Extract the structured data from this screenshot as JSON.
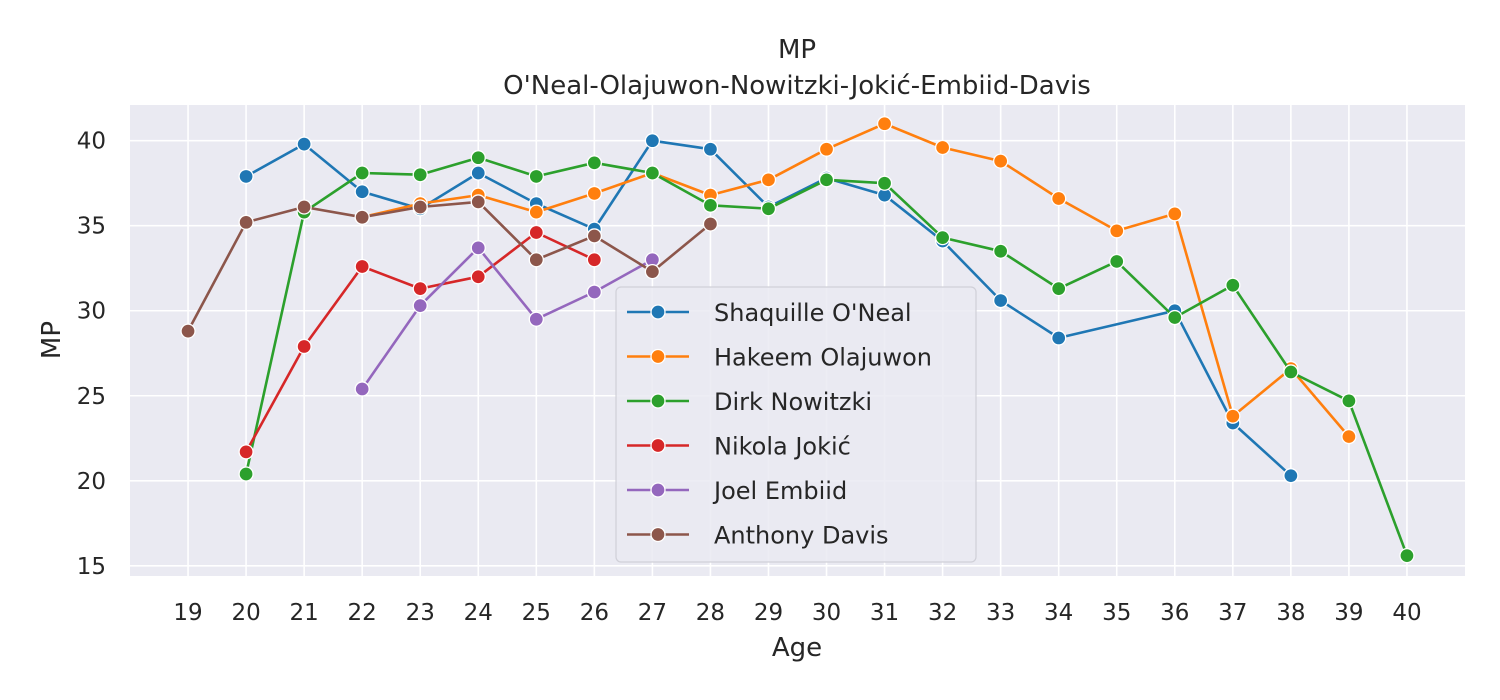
{
  "chart_data": {
    "type": "line",
    "title": "MP",
    "subtitle": "O'Neal-Olajuwon-Nowitzki-Jokić-Embiid-Davis",
    "xlabel": "Age",
    "ylabel": "MP",
    "x_ticks": [
      19,
      20,
      21,
      22,
      23,
      24,
      25,
      26,
      27,
      28,
      29,
      30,
      31,
      32,
      33,
      34,
      35,
      36,
      37,
      38,
      39,
      40
    ],
    "y_ticks": [
      15,
      20,
      25,
      30,
      35,
      40
    ],
    "xlim": [
      18,
      41
    ],
    "ylim": [
      14.4,
      42.1
    ],
    "grid": true,
    "legend_position": "center",
    "background_color": "#eaeaf2",
    "grid_color": "#ffffff",
    "series": [
      {
        "name": "Shaquille O'Neal",
        "color": "#1f77b4",
        "points": [
          [
            20,
            37.9
          ],
          [
            21,
            39.8
          ],
          [
            22,
            37.0
          ],
          [
            23,
            36.0
          ],
          [
            24,
            38.1
          ],
          [
            25,
            36.3
          ],
          [
            26,
            34.8
          ],
          [
            27,
            40.0
          ],
          [
            28,
            39.5
          ],
          [
            29,
            36.1
          ],
          [
            30,
            37.8
          ],
          [
            31,
            36.8
          ],
          [
            32,
            34.1
          ],
          [
            33,
            30.6
          ],
          [
            34,
            28.4
          ],
          [
            36,
            30.0
          ],
          [
            37,
            23.4
          ],
          [
            38,
            20.3
          ]
        ]
      },
      {
        "name": "Hakeem Olajuwon",
        "color": "#ff7f0e",
        "points": [
          [
            22,
            35.5
          ],
          [
            23,
            36.3
          ],
          [
            24,
            36.8
          ],
          [
            25,
            35.8
          ],
          [
            26,
            36.9
          ],
          [
            27,
            38.1
          ],
          [
            28,
            36.8
          ],
          [
            29,
            37.7
          ],
          [
            30,
            39.5
          ],
          [
            31,
            41.0
          ],
          [
            32,
            39.6
          ],
          [
            33,
            38.8
          ],
          [
            34,
            36.6
          ],
          [
            35,
            34.7
          ],
          [
            36,
            35.7
          ],
          [
            37,
            23.8
          ],
          [
            38,
            26.6
          ],
          [
            39,
            22.6
          ]
        ]
      },
      {
        "name": "Dirk Nowitzki",
        "color": "#2ca02c",
        "points": [
          [
            20,
            20.4
          ],
          [
            21,
            35.8
          ],
          [
            22,
            38.1
          ],
          [
            23,
            38.0
          ],
          [
            24,
            39.0
          ],
          [
            25,
            37.9
          ],
          [
            26,
            38.7
          ],
          [
            27,
            38.1
          ],
          [
            28,
            36.2
          ],
          [
            29,
            36.0
          ],
          [
            30,
            37.7
          ],
          [
            31,
            37.5
          ],
          [
            32,
            34.3
          ],
          [
            33,
            33.5
          ],
          [
            34,
            31.3
          ],
          [
            35,
            32.9
          ],
          [
            36,
            29.6
          ],
          [
            37,
            31.5
          ],
          [
            38,
            26.4
          ],
          [
            39,
            24.7
          ],
          [
            40,
            15.6
          ]
        ]
      },
      {
        "name": "Nikola Jokić",
        "color": "#d62728",
        "points": [
          [
            20,
            21.7
          ],
          [
            21,
            27.9
          ],
          [
            22,
            32.6
          ],
          [
            23,
            31.3
          ],
          [
            24,
            32.0
          ],
          [
            25,
            34.6
          ],
          [
            26,
            33.0
          ]
        ]
      },
      {
        "name": "Joel Embiid",
        "color": "#9467bd",
        "points": [
          [
            22,
            25.4
          ],
          [
            23,
            30.3
          ],
          [
            24,
            33.7
          ],
          [
            25,
            29.5
          ],
          [
            26,
            31.1
          ],
          [
            27,
            33.0
          ]
        ]
      },
      {
        "name": "Anthony Davis",
        "color": "#8c564b",
        "points": [
          [
            19,
            28.8
          ],
          [
            20,
            35.2
          ],
          [
            21,
            36.1
          ],
          [
            22,
            35.5
          ],
          [
            23,
            36.1
          ],
          [
            24,
            36.4
          ],
          [
            25,
            33.0
          ],
          [
            26,
            34.4
          ],
          [
            27,
            32.3
          ],
          [
            28,
            35.1
          ]
        ]
      }
    ]
  }
}
